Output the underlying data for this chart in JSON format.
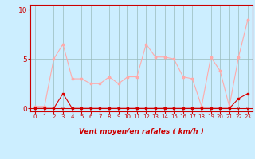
{
  "x": [
    0,
    1,
    2,
    3,
    4,
    5,
    6,
    7,
    8,
    9,
    10,
    11,
    12,
    13,
    14,
    15,
    16,
    17,
    18,
    19,
    20,
    21,
    22,
    23
  ],
  "y_rafales": [
    0.2,
    0.2,
    5.0,
    6.5,
    3.0,
    3.0,
    2.5,
    2.5,
    3.2,
    2.5,
    3.2,
    3.2,
    6.5,
    5.2,
    5.2,
    5.0,
    3.2,
    3.0,
    0.2,
    5.2,
    3.8,
    0.2,
    5.2,
    9.0
  ],
  "y_moyen": [
    0.0,
    0.0,
    0.0,
    1.5,
    0.0,
    0.0,
    0.0,
    0.0,
    0.0,
    0.0,
    0.0,
    0.0,
    0.0,
    0.0,
    0.0,
    0.0,
    0.0,
    0.0,
    0.0,
    0.0,
    0.0,
    0.0,
    1.0,
    1.5
  ],
  "color_rafales": "#ffaaaa",
  "color_moyen": "#dd0000",
  "bg_color": "#cceeff",
  "grid_color": "#99bbbb",
  "xlabel": "Vent moyen/en rafales ( km/h )",
  "xlabel_color": "#cc0000",
  "tick_color": "#cc0000",
  "yticks": [
    0,
    5,
    10
  ],
  "xlim": [
    -0.5,
    23.5
  ],
  "ylim": [
    -0.3,
    10.5
  ],
  "arrow_color": "#cc0000",
  "line_color_bottom": "#cc0000"
}
